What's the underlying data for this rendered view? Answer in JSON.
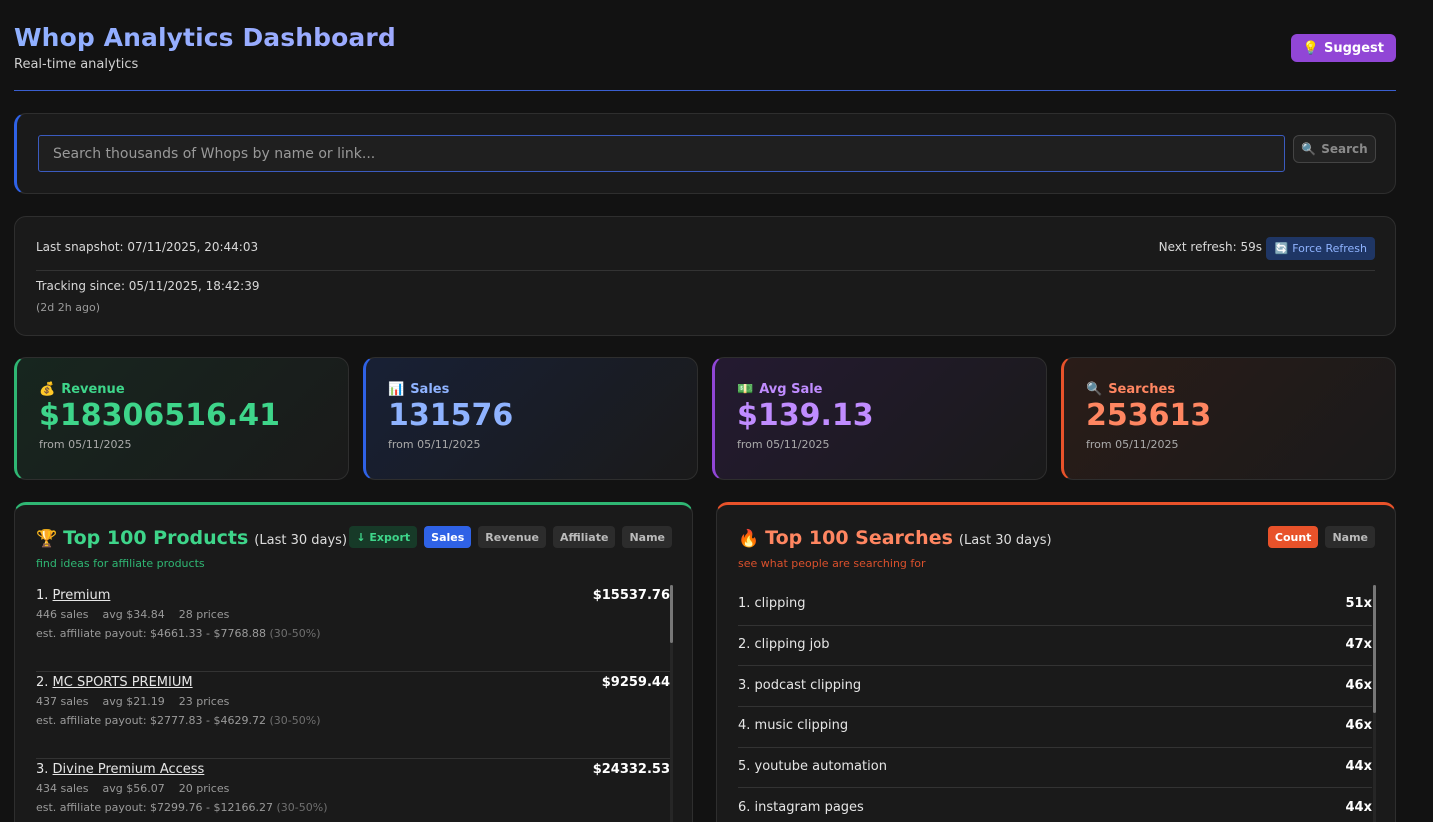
{
  "header": {
    "title": "Whop Analytics Dashboard",
    "subtitle": "Real-time analytics",
    "suggest_label": "Suggest",
    "suggest_icon": "lightbulb-icon"
  },
  "search": {
    "placeholder": "Search thousands of Whops by name or link...",
    "button_label": "Search",
    "button_icon": "magnifier-icon"
  },
  "status": {
    "last_snapshot": "Last snapshot: 07/11/2025, 20:44:03",
    "next_refresh": "Next refresh: 59s",
    "force_refresh_label": "Force Refresh",
    "tracking_since": "Tracking since: 05/11/2025, 18:42:39",
    "ago": "(2d 2h ago)"
  },
  "stats": {
    "revenue": {
      "label": "Revenue",
      "value": "$18306516.41",
      "from": "from 05/11/2025",
      "icon": "money-bag-icon",
      "color": "#3ed58a"
    },
    "sales": {
      "label": "Sales",
      "value": "131576",
      "from": "from 05/11/2025",
      "icon": "bar-chart-icon",
      "color": "#8fb3ff"
    },
    "avg_sale": {
      "label": "Avg Sale",
      "value": "$139.13",
      "from": "from 05/11/2025",
      "icon": "dollar-bill-icon",
      "color": "#c08cff"
    },
    "searches": {
      "label": "Searches",
      "value": "253613",
      "from": "from 05/11/2025",
      "icon": "magnifier-icon",
      "color": "#ff8661"
    }
  },
  "products": {
    "title": "Top 100 Products",
    "period": "(Last 30 days)",
    "subtitle": "find ideas for affiliate products",
    "actions": {
      "export": "↓ Export",
      "sales": "Sales",
      "revenue": "Revenue",
      "affiliate": "Affiliate",
      "name": "Name"
    },
    "items": [
      {
        "rank": "1.",
        "name": "Premium",
        "amount": "$15537.76",
        "sales": "446 sales",
        "avg": "avg $34.84",
        "prices": "28 prices",
        "payout": "est. affiliate payout: $4661.33 - $7768.88",
        "pct": "(30-50%)"
      },
      {
        "rank": "2.",
        "name": "MC SPORTS PREMIUM",
        "amount": "$9259.44",
        "sales": "437 sales",
        "avg": "avg $21.19",
        "prices": "23 prices",
        "payout": "est. affiliate payout: $2777.83 - $4629.72",
        "pct": "(30-50%)"
      },
      {
        "rank": "3.",
        "name": "Divine Premium Access",
        "amount": "$24332.53",
        "sales": "434 sales",
        "avg": "avg $56.07",
        "prices": "20 prices",
        "payout": "est. affiliate payout: $7299.76 - $12166.27",
        "pct": "(30-50%)"
      }
    ]
  },
  "searches": {
    "title": "Top 100 Searches",
    "period": "(Last 30 days)",
    "subtitle": "see what people are searching for",
    "actions": {
      "count": "Count",
      "name": "Name"
    },
    "items": [
      {
        "label": "1. clipping",
        "count": "51x"
      },
      {
        "label": "2. clipping job",
        "count": "47x"
      },
      {
        "label": "3. podcast clipping",
        "count": "46x"
      },
      {
        "label": "4. music clipping",
        "count": "46x"
      },
      {
        "label": "5. youtube automation",
        "count": "44x"
      },
      {
        "label": "6. instagram pages",
        "count": "44x"
      }
    ]
  }
}
